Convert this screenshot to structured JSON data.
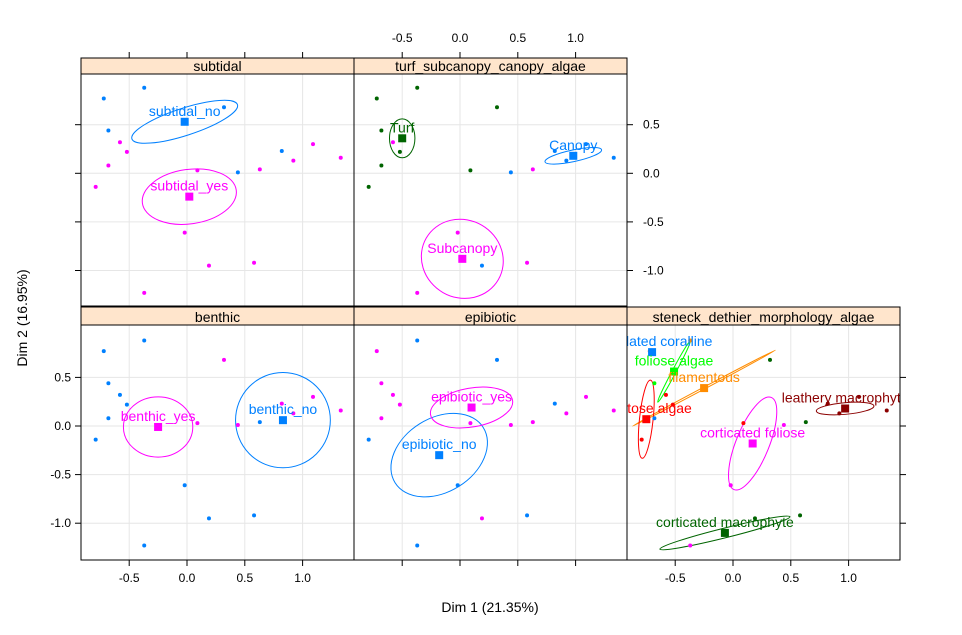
{
  "chart_data": {
    "type": "scatter",
    "xlabel": "Dim 1 (21.35%)",
    "ylabel": "Dim 2 (16.95%)",
    "xlim": [
      -0.9,
      1.45
    ],
    "ylim": [
      -1.4,
      0.95
    ],
    "x_ticks": [
      -0.5,
      0.0,
      0.5,
      1.0
    ],
    "x_tick_labels": [
      "-0.5",
      "0.0",
      "0.5",
      "1.0"
    ],
    "y_ticks": [
      -1.0,
      -0.5,
      0.0,
      0.5
    ],
    "y_tick_labels": [
      "-1.0",
      "-0.5",
      "0.0",
      "0.5"
    ],
    "grid": true,
    "observations": [
      {
        "x": -0.72,
        "y": 0.77
      },
      {
        "x": -0.37,
        "y": 0.88
      },
      {
        "x": -0.68,
        "y": 0.44
      },
      {
        "x": -0.68,
        "y": 0.08
      },
      {
        "x": -0.79,
        "y": -0.14
      },
      {
        "x": -0.58,
        "y": 0.32
      },
      {
        "x": -0.52,
        "y": 0.22
      },
      {
        "x": -0.37,
        "y": -1.23
      },
      {
        "x": -0.02,
        "y": -0.61
      },
      {
        "x": 0.09,
        "y": 0.03
      },
      {
        "x": 0.19,
        "y": -0.95
      },
      {
        "x": 0.32,
        "y": 0.68
      },
      {
        "x": 0.44,
        "y": 0.01
      },
      {
        "x": 0.58,
        "y": -0.92
      },
      {
        "x": 0.63,
        "y": 0.04
      },
      {
        "x": 0.82,
        "y": 0.23
      },
      {
        "x": 0.92,
        "y": 0.13
      },
      {
        "x": 1.09,
        "y": 0.3
      },
      {
        "x": 1.33,
        "y": 0.16
      }
    ],
    "panels": [
      {
        "title": "subtidal",
        "point_groups": [
          0,
          0,
          0,
          1,
          1,
          1,
          1,
          1,
          1,
          1,
          1,
          0,
          0,
          1,
          1,
          0,
          1,
          1,
          1
        ],
        "categories": [
          {
            "name": "subtidal_no",
            "x": -0.02,
            "y": 0.53,
            "color": "#0080ff",
            "ellipse": {
              "rx": 0.48,
              "ry": 0.14,
              "angle": -18
            }
          },
          {
            "name": "subtidal_yes",
            "x": 0.02,
            "y": -0.24,
            "color": "#ff00ff",
            "ellipse": {
              "rx": 0.41,
              "ry": 0.28,
              "angle": -8
            }
          }
        ]
      },
      {
        "title": "turf_subcanopy_canopy_algae",
        "point_groups": [
          0,
          0,
          0,
          0,
          0,
          1,
          0,
          1,
          1,
          0,
          2,
          0,
          2,
          1,
          1,
          2,
          2,
          2,
          2
        ],
        "categories": [
          {
            "name": "Turf",
            "x": -0.5,
            "y": 0.36,
            "color": "#006400",
            "ellipse": {
              "rx": 0.11,
              "ry": 0.2,
              "angle": 0
            }
          },
          {
            "name": "Subcanopy",
            "x": 0.02,
            "y": -0.88,
            "color": "#ff00ff",
            "ellipse": {
              "rx": 0.36,
              "ry": 0.4,
              "angle": 30
            }
          },
          {
            "name": "Canopy",
            "x": 0.98,
            "y": 0.18,
            "color": "#0080ff",
            "ellipse": {
              "rx": 0.25,
              "ry": 0.06,
              "angle": -12
            }
          }
        ]
      },
      {
        "title": "benthic",
        "point_groups": [
          0,
          0,
          0,
          0,
          0,
          0,
          0,
          0,
          0,
          1,
          0,
          1,
          1,
          0,
          0,
          1,
          1,
          1,
          1
        ],
        "categories": [
          {
            "name": "benthic_no",
            "x": 0.83,
            "y": 0.06,
            "color": "#0080ff",
            "ellipse": {
              "rx": 0.41,
              "ry": 0.49,
              "angle": 0
            }
          },
          {
            "name": "benthic_yes",
            "x": -0.25,
            "y": -0.01,
            "color": "#ff00ff",
            "ellipse": {
              "rx": 0.3,
              "ry": 0.31,
              "angle": 0
            }
          }
        ]
      },
      {
        "title": "epibiotic",
        "point_groups": [
          1,
          0,
          1,
          1,
          0,
          1,
          1,
          0,
          0,
          1,
          1,
          0,
          1,
          0,
          1,
          0,
          1,
          1,
          1
        ],
        "categories": [
          {
            "name": "epibiotic_no",
            "x": -0.18,
            "y": -0.3,
            "color": "#0080ff",
            "ellipse": {
              "rx": 0.45,
              "ry": 0.38,
              "angle": -32
            }
          },
          {
            "name": "epibiotic_yes",
            "x": 0.1,
            "y": 0.19,
            "color": "#ff00ff",
            "ellipse": {
              "rx": 0.36,
              "ry": 0.2,
              "angle": -10
            }
          }
        ]
      },
      {
        "title": "steneck_dethier_morphology_algae",
        "point_groups": [
          2,
          2,
          1,
          0,
          3,
          3,
          3,
          4,
          4,
          3,
          5,
          5,
          4,
          5,
          5,
          6,
          6,
          6,
          6
        ],
        "categories": [
          {
            "name": "articulated coralline",
            "x": -0.7,
            "y": 0.76,
            "color": "#0080ff",
            "ellipse": null
          },
          {
            "name": "foliose algae",
            "x": -0.51,
            "y": 0.56,
            "color": "#00ff00",
            "ellipse": {
              "rx": 0.3,
              "ry": 0.02,
              "angle": -62
            }
          },
          {
            "name": "filamentous",
            "x": -0.25,
            "y": 0.39,
            "color": "#ff8c00",
            "ellipse": {
              "rx": 0.7,
              "ry": 0.01,
              "angle": -28
            }
          },
          {
            "name": "crustose algae",
            "x": -0.75,
            "y": 0.07,
            "color": "#ff0000",
            "ellipse": {
              "rx": 0.34,
              "ry": 0.07,
              "angle": -84
            }
          },
          {
            "name": "corticated foliose",
            "x": 0.17,
            "y": -0.18,
            "color": "#ff00ff",
            "ellipse": {
              "rx": 0.43,
              "ry": 0.17,
              "angle": -68
            }
          },
          {
            "name": "corticated macrophyte",
            "x": -0.07,
            "y": -1.1,
            "color": "#006400",
            "ellipse": {
              "rx": 0.58,
              "ry": 0.05,
              "angle": -14
            }
          },
          {
            "name": "leathery macrophyte",
            "x": 0.97,
            "y": 0.18,
            "color": "#8b0000",
            "ellipse": {
              "rx": 0.25,
              "ry": 0.06,
              "angle": -5
            }
          }
        ]
      }
    ]
  }
}
